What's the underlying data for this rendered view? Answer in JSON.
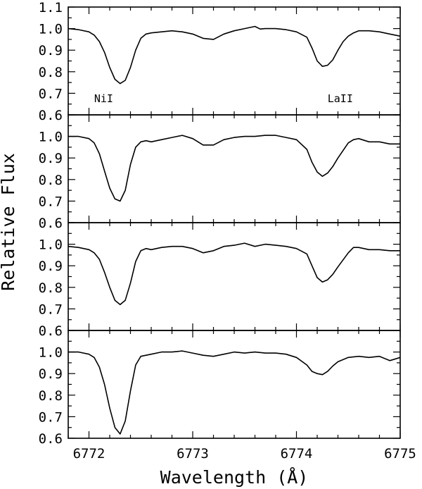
{
  "chart_data": {
    "type": "line",
    "xlabel": "Wavelength (Å)",
    "ylabel": "Relative Flux",
    "xlim": [
      6771.8,
      6775.0
    ],
    "x_ticks": [
      "6772",
      "6773",
      "6774",
      "6775"
    ],
    "panels": [
      {
        "ylim": [
          0.6,
          1.1
        ],
        "y_ticks": [
          "0.6",
          "0.7",
          "0.8",
          "0.9",
          "1.0",
          "1.1"
        ],
        "annotations": [
          {
            "text": "NiI",
            "x": 6772.05,
            "y": 0.675
          },
          {
            "text": "LaII",
            "x": 6774.3,
            "y": 0.675
          }
        ],
        "series": [
          {
            "x": [
              6771.8,
              6771.9,
              6772.0,
              6772.05,
              6772.1,
              6772.15,
              6772.2,
              6772.25,
              6772.3,
              6772.35,
              6772.4,
              6772.45,
              6772.5,
              6772.55,
              6772.6,
              6772.7,
              6772.8,
              6772.9,
              6773.0,
              6773.1,
              6773.2,
              6773.3,
              6773.4,
              6773.5,
              6773.6,
              6773.65,
              6773.7,
              6773.8,
              6773.9,
              6774.0,
              6774.1,
              6774.15,
              6774.2,
              6774.25,
              6774.3,
              6774.35,
              6774.4,
              6774.45,
              6774.5,
              6774.55,
              6774.6,
              6774.7,
              6774.8,
              6774.9,
              6775.0
            ],
            "y": [
              1.0,
              0.995,
              0.985,
              0.97,
              0.94,
              0.89,
              0.82,
              0.765,
              0.745,
              0.76,
              0.82,
              0.9,
              0.955,
              0.975,
              0.98,
              0.985,
              0.99,
              0.985,
              0.975,
              0.955,
              0.95,
              0.975,
              0.99,
              1.0,
              1.01,
              0.998,
              1.0,
              1.0,
              0.995,
              0.985,
              0.96,
              0.91,
              0.85,
              0.825,
              0.83,
              0.855,
              0.9,
              0.94,
              0.965,
              0.98,
              0.99,
              0.99,
              0.985,
              0.975,
              0.965
            ]
          }
        ]
      },
      {
        "ylim": [
          0.6,
          1.1
        ],
        "y_ticks": [
          "0.6",
          "0.7",
          "0.8",
          "0.9",
          "1.0"
        ],
        "series": [
          {
            "x": [
              6771.8,
              6771.9,
              6772.0,
              6772.05,
              6772.1,
              6772.15,
              6772.2,
              6772.25,
              6772.3,
              6772.35,
              6772.4,
              6772.45,
              6772.5,
              6772.55,
              6772.6,
              6772.7,
              6772.8,
              6772.9,
              6773.0,
              6773.1,
              6773.2,
              6773.3,
              6773.4,
              6773.5,
              6773.6,
              6773.7,
              6773.8,
              6773.9,
              6774.0,
              6774.1,
              6774.15,
              6774.2,
              6774.25,
              6774.3,
              6774.35,
              6774.4,
              6774.5,
              6774.55,
              6774.6,
              6774.7,
              6774.8,
              6774.9,
              6775.0
            ],
            "y": [
              1.0,
              1.0,
              0.99,
              0.97,
              0.92,
              0.84,
              0.76,
              0.71,
              0.7,
              0.75,
              0.87,
              0.95,
              0.975,
              0.98,
              0.975,
              0.985,
              0.995,
              1.005,
              0.99,
              0.96,
              0.96,
              0.985,
              0.995,
              1.0,
              1.0,
              1.005,
              1.005,
              0.995,
              0.985,
              0.94,
              0.88,
              0.835,
              0.815,
              0.83,
              0.86,
              0.9,
              0.97,
              0.985,
              0.99,
              0.975,
              0.975,
              0.965,
              0.965
            ]
          }
        ]
      },
      {
        "ylim": [
          0.6,
          1.1
        ],
        "y_ticks": [
          "0.6",
          "0.7",
          "0.8",
          "0.9",
          "1.0"
        ],
        "series": [
          {
            "x": [
              6771.8,
              6771.9,
              6772.0,
              6772.05,
              6772.1,
              6772.15,
              6772.2,
              6772.25,
              6772.3,
              6772.35,
              6772.4,
              6772.45,
              6772.5,
              6772.55,
              6772.6,
              6772.7,
              6772.8,
              6772.9,
              6773.0,
              6773.1,
              6773.2,
              6773.3,
              6773.4,
              6773.5,
              6773.6,
              6773.7,
              6773.8,
              6773.9,
              6774.0,
              6774.1,
              6774.15,
              6774.2,
              6774.25,
              6774.3,
              6774.35,
              6774.4,
              6774.5,
              6774.55,
              6774.6,
              6774.7,
              6774.8,
              6774.9,
              6775.0
            ],
            "y": [
              0.99,
              0.985,
              0.975,
              0.96,
              0.93,
              0.87,
              0.8,
              0.74,
              0.72,
              0.74,
              0.82,
              0.92,
              0.97,
              0.98,
              0.975,
              0.985,
              0.99,
              0.99,
              0.98,
              0.96,
              0.97,
              0.99,
              0.995,
              1.005,
              0.99,
              1.0,
              0.995,
              0.99,
              0.98,
              0.955,
              0.9,
              0.845,
              0.825,
              0.835,
              0.86,
              0.895,
              0.96,
              0.985,
              0.985,
              0.975,
              0.975,
              0.97,
              0.97
            ]
          }
        ]
      },
      {
        "ylim": [
          0.6,
          1.1
        ],
        "y_ticks": [
          "0.6",
          "0.7",
          "0.8",
          "0.9",
          "1.0"
        ],
        "series": [
          {
            "x": [
              6771.8,
              6771.9,
              6772.0,
              6772.05,
              6772.1,
              6772.15,
              6772.2,
              6772.25,
              6772.3,
              6772.35,
              6772.4,
              6772.45,
              6772.5,
              6772.6,
              6772.7,
              6772.8,
              6772.9,
              6773.0,
              6773.1,
              6773.2,
              6773.3,
              6773.4,
              6773.5,
              6773.6,
              6773.7,
              6773.8,
              6773.9,
              6774.0,
              6774.1,
              6774.15,
              6774.2,
              6774.25,
              6774.3,
              6774.35,
              6774.4,
              6774.5,
              6774.6,
              6774.7,
              6774.8,
              6774.9,
              6775.0
            ],
            "y": [
              1.0,
              1.0,
              0.99,
              0.975,
              0.93,
              0.85,
              0.74,
              0.65,
              0.62,
              0.68,
              0.82,
              0.94,
              0.98,
              0.99,
              1.0,
              1.0,
              1.005,
              0.995,
              0.985,
              0.98,
              0.99,
              1.0,
              0.995,
              1.0,
              0.995,
              0.995,
              0.99,
              0.975,
              0.94,
              0.91,
              0.9,
              0.895,
              0.91,
              0.935,
              0.955,
              0.975,
              0.98,
              0.975,
              0.98,
              0.96,
              0.975
            ]
          }
        ]
      }
    ]
  }
}
